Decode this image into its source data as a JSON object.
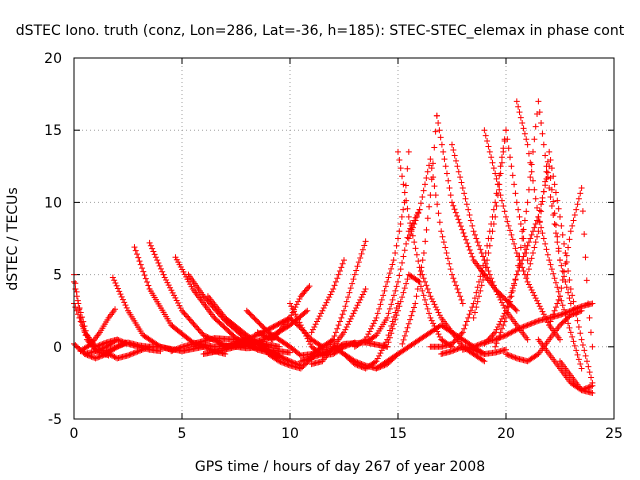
{
  "chart_data": {
    "type": "scatter",
    "title": "dSTEC Iono. truth (conz, Lon=286, Lat=-36, h=185): STEC-STEC_elemax in phase cont",
    "xlabel": "GPS time / hours of day 267 of year 2008",
    "ylabel": "dSTEC  / TECUs",
    "xlim": [
      0,
      25
    ],
    "ylim": [
      -5,
      20
    ],
    "xticks": [
      "0",
      "5",
      "10",
      "15",
      "20",
      "25"
    ],
    "yticks": [
      "-5",
      "0",
      "5",
      "10",
      "15",
      "20"
    ],
    "grid": true,
    "marker": "+",
    "color": "#ff0000",
    "series": [
      {
        "x": [
          0,
          0.3,
          0.6,
          1.0,
          1.5,
          2.0,
          2.4
        ],
        "y": [
          5.0,
          2.0,
          0.5,
          -0.2,
          -0.3,
          0.0,
          0.3
        ]
      },
      {
        "x": [
          0,
          0.2,
          0.6,
          1.0,
          1.6
        ],
        "y": [
          4.5,
          3.0,
          0.8,
          -0.3,
          -0.6
        ]
      },
      {
        "x": [
          0,
          0.5,
          1.0,
          1.5,
          2.0,
          2.5,
          3.0,
          3.5,
          4.0,
          4.5
        ],
        "y": [
          0.2,
          -0.5,
          -0.8,
          -0.5,
          0.0,
          0.3,
          0.1,
          0.0,
          0.0,
          -0.2
        ]
      },
      {
        "x": [
          0,
          0.5,
          1.0,
          1.5,
          2.0
        ],
        "y": [
          3.0,
          1.0,
          0.0,
          0.3,
          0.5
        ]
      },
      {
        "x": [
          0.3,
          0.8,
          1.2,
          1.6,
          1.9
        ],
        "y": [
          -0.3,
          0.2,
          1.0,
          2.0,
          2.6
        ]
      },
      {
        "x": [
          0.5,
          1.0,
          1.5,
          2.0,
          2.5,
          3.0,
          3.5,
          4.0
        ],
        "y": [
          -0.5,
          -0.3,
          0.0,
          0.5,
          0.2,
          0.0,
          -0.2,
          -0.3
        ]
      },
      {
        "x": [
          1.5,
          2.0,
          2.5,
          3.0,
          3.5
        ],
        "y": [
          -0.4,
          -0.8,
          -0.6,
          -0.3,
          0.0
        ]
      },
      {
        "x": [
          1.8,
          2.5,
          3.2,
          4.0,
          5.0,
          6.0
        ],
        "y": [
          4.8,
          2.5,
          0.8,
          0.0,
          -0.3,
          0.0
        ]
      },
      {
        "x": [
          2.8,
          3.5,
          4.5,
          5.5,
          6.5,
          7.5,
          8.5
        ],
        "y": [
          6.9,
          4.0,
          1.5,
          0.3,
          0.0,
          0.1,
          0.3
        ]
      },
      {
        "x": [
          3.5,
          4.2,
          5.0,
          6.0,
          7.0,
          8.0,
          9.0
        ],
        "y": [
          7.2,
          4.8,
          2.5,
          0.8,
          0.1,
          -0.1,
          0.0
        ]
      },
      {
        "x": [
          4.5,
          5.0,
          5.5,
          6.0,
          6.5,
          7.0
        ],
        "y": [
          -0.3,
          0.0,
          0.2,
          0.0,
          -0.3,
          -0.5
        ]
      },
      {
        "x": [
          4.7,
          5.5,
          6.5,
          7.5,
          8.5,
          9.5
        ],
        "y": [
          6.2,
          4.0,
          2.0,
          0.6,
          -0.2,
          -0.6
        ]
      },
      {
        "x": [
          5.3,
          6.0,
          7.0,
          8.0,
          9.0,
          10.0
        ],
        "y": [
          5.0,
          3.5,
          1.8,
          0.5,
          -0.2,
          -0.4
        ]
      },
      {
        "x": [
          5.5,
          6.5,
          7.5,
          8.5,
          9.5
        ],
        "y": [
          0.2,
          0.6,
          0.5,
          0.3,
          0.0
        ]
      },
      {
        "x": [
          6.2,
          7.0,
          8.0,
          9.0,
          10.0,
          10.5
        ],
        "y": [
          3.5,
          2.0,
          0.8,
          -0.3,
          -1.0,
          -1.3
        ]
      },
      {
        "x": [
          6.0,
          7.0,
          8.0,
          9.0,
          10.0,
          10.8
        ],
        "y": [
          -0.5,
          -0.2,
          0.2,
          0.6,
          1.5,
          2.5
        ]
      },
      {
        "x": [
          7.0,
          8.0,
          9.0,
          10.0,
          10.5,
          11.0,
          11.5
        ],
        "y": [
          0.0,
          0.5,
          1.2,
          2.0,
          1.3,
          0.5,
          0.0
        ]
      },
      {
        "x": [
          8.0,
          9.0,
          10.0,
          10.5,
          11.0,
          11.5,
          12.0
        ],
        "y": [
          2.5,
          1.0,
          0.0,
          -0.6,
          -0.5,
          0.0,
          0.5
        ]
      },
      {
        "x": [
          8.5,
          9.2,
          10.0,
          10.5,
          10.9
        ],
        "y": [
          1.0,
          0.5,
          2.0,
          3.5,
          4.2
        ]
      },
      {
        "x": [
          9.0,
          9.5,
          10.0,
          10.5,
          11.0,
          11.5
        ],
        "y": [
          -0.5,
          -1.0,
          -1.3,
          -1.5,
          -0.8,
          0.0
        ]
      },
      {
        "x": [
          10.0,
          10.5,
          11.0,
          11.5,
          12.0,
          12.5,
          13.0
        ],
        "y": [
          3.0,
          1.5,
          0.0,
          -0.6,
          -0.5,
          0.0,
          0.3
        ]
      },
      {
        "x": [
          11.0,
          11.5,
          12.0,
          12.5,
          13.0,
          13.5
        ],
        "y": [
          -1.2,
          -1.0,
          0.0,
          1.0,
          2.5,
          4.0
        ]
      },
      {
        "x": [
          10.5,
          11.5,
          12.5,
          13.5,
          14.5
        ],
        "y": [
          -1.0,
          -0.5,
          0.2,
          0.3,
          0.0
        ]
      },
      {
        "x": [
          11.5,
          12.0,
          12.5,
          13.0,
          13.5
        ],
        "y": [
          -0.4,
          0.5,
          2.5,
          5.0,
          7.3
        ]
      },
      {
        "x": [
          11.0,
          11.5,
          12.0,
          12.5
        ],
        "y": [
          1.0,
          2.5,
          4.0,
          6.0
        ]
      },
      {
        "x": [
          12.5,
          13.0,
          13.5,
          14.0,
          14.5,
          15.0
        ],
        "y": [
          -0.5,
          -1.2,
          -1.5,
          -1.0,
          0.5,
          3.0
        ]
      },
      {
        "x": [
          13.0,
          13.5,
          14.0,
          14.5,
          14.8,
          15.0,
          15.3,
          15.5
        ],
        "y": [
          0.0,
          0.5,
          2.0,
          4.5,
          6.0,
          7.5,
          10.0,
          13.5
        ]
      },
      {
        "x": [
          13.5,
          14.0,
          14.5,
          15.0,
          15.5,
          16.0
        ],
        "y": [
          0.3,
          0.8,
          2.0,
          4.5,
          8.0,
          9.5
        ]
      },
      {
        "x": [
          15.0,
          15.5,
          16.0,
          16.5,
          17.0,
          17.5,
          18.0,
          18.5,
          19.0
        ],
        "y": [
          13.5,
          9.0,
          5.5,
          3.5,
          2.0,
          1.0,
          0.0,
          -0.5,
          -1.0
        ]
      },
      {
        "x": [
          15.2,
          15.8,
          16.2,
          16.5,
          16.8
        ],
        "y": [
          0.2,
          3.0,
          6.5,
          10.5,
          16.0
        ]
      },
      {
        "x": [
          15.5,
          16.0,
          16.5,
          17.0,
          17.5,
          18.0
        ],
        "y": [
          7.5,
          9.5,
          13.0,
          8.0,
          5.0,
          3.0
        ]
      },
      {
        "x": [
          14.5,
          15.0,
          15.5,
          16.0,
          16.5,
          17.0,
          17.5
        ],
        "y": [
          0.0,
          2.5,
          5.0,
          4.5,
          2.0,
          0.5,
          0.0
        ]
      },
      {
        "x": [
          16.8,
          17.5,
          18.5,
          19.5,
          20.5
        ],
        "y": [
          16.0,
          10.0,
          6.0,
          4.0,
          2.5
        ]
      },
      {
        "x": [
          16.5,
          17.0,
          17.5,
          18.0,
          18.5,
          19.0,
          19.5,
          20.0
        ],
        "y": [
          0.0,
          0.0,
          0.2,
          1.0,
          3.0,
          6.0,
          10.0,
          15.0
        ]
      },
      {
        "x": [
          17.5,
          18.0,
          18.5,
          19.0,
          19.5,
          20.0,
          20.5,
          21.0
        ],
        "y": [
          14.0,
          11.0,
          8.0,
          6.0,
          4.0,
          2.5,
          1.5,
          0.5
        ]
      },
      {
        "x": [
          18.5,
          19.0,
          19.5,
          20.0,
          20.5,
          21.0
        ],
        "y": [
          2.0,
          5.0,
          9.0,
          15.0,
          10.0,
          6.0
        ]
      },
      {
        "x": [
          19.0,
          19.5,
          20.0,
          20.5,
          21.0,
          21.5,
          22.0,
          22.5
        ],
        "y": [
          15.0,
          12.0,
          9.0,
          6.5,
          4.5,
          3.0,
          1.5,
          0.5
        ]
      },
      {
        "x": [
          19.5,
          20.0,
          20.5,
          21.0,
          21.5,
          22.0,
          22.5
        ],
        "y": [
          0.0,
          2.0,
          5.0,
          10.0,
          17.0,
          11.0,
          6.0
        ]
      },
      {
        "x": [
          20.5,
          21.0,
          21.5,
          22.0,
          22.5,
          23.0,
          23.5
        ],
        "y": [
          17.0,
          14.0,
          9.0,
          6.0,
          3.5,
          1.0,
          -1.5
        ]
      },
      {
        "x": [
          21.0,
          21.5,
          22.0,
          22.5,
          23.0,
          23.5,
          24.0
        ],
        "y": [
          5.0,
          8.0,
          13.5,
          9.0,
          4.0,
          0.5,
          -2.5
        ]
      },
      {
        "x": [
          19.0,
          19.5,
          20.0,
          20.5,
          21.0,
          21.5,
          22.0,
          22.5,
          23.0
        ],
        "y": [
          0.2,
          1.0,
          2.5,
          5.0,
          7.0,
          9.0,
          12.5,
          6.0,
          3.0
        ]
      },
      {
        "x": [
          22.0,
          22.5,
          23.0,
          23.5,
          23.8,
          24.0
        ],
        "y": [
          1.5,
          3.5,
          8.0,
          11.0,
          3.0,
          0.0
        ]
      },
      {
        "x": [
          22.5,
          23.0,
          23.5,
          24.0
        ],
        "y": [
          -1.0,
          -2.0,
          -3.0,
          -3.2
        ]
      },
      {
        "x": [
          21.5,
          22.0,
          22.5,
          23.0,
          23.5,
          24.0
        ],
        "y": [
          0.5,
          -0.5,
          -1.5,
          -2.5,
          -3.0,
          -2.7
        ]
      },
      {
        "x": [
          20.0,
          20.5,
          21.0,
          21.5,
          22.0,
          22.5,
          23.0,
          23.5
        ],
        "y": [
          -0.5,
          -0.8,
          -1.0,
          -0.5,
          0.5,
          1.5,
          2.2,
          2.5
        ]
      },
      {
        "x": [
          17.0,
          17.5,
          18.0,
          18.5,
          19.0,
          19.5,
          20.0
        ],
        "y": [
          -0.5,
          -0.3,
          0.0,
          -0.2,
          -0.5,
          -0.4,
          -0.2
        ]
      },
      {
        "x": [
          18.0,
          18.5,
          19.0,
          19.5,
          20.0,
          20.5,
          21.0,
          21.5,
          22.0,
          22.5,
          23.0,
          23.5,
          24.0
        ],
        "y": [
          -0.2,
          0.0,
          0.3,
          0.5,
          0.8,
          1.2,
          1.5,
          1.8,
          2.0,
          2.2,
          2.5,
          2.8,
          3.0
        ]
      },
      {
        "x": [
          14.0,
          14.5,
          15.0,
          15.5,
          16.0,
          16.5,
          17.0,
          17.5,
          18.0,
          18.5,
          19.0
        ],
        "y": [
          -1.5,
          -1.0,
          -0.5,
          0.0,
          0.5,
          1.0,
          1.5,
          1.0,
          0.5,
          0.0,
          -0.5
        ]
      },
      {
        "x": [
          12.0,
          12.5,
          13.0,
          13.5,
          14.0,
          14.5,
          15.0
        ],
        "y": [
          0.0,
          -0.5,
          -1.0,
          -1.3,
          -1.5,
          -1.2,
          -0.5
        ]
      }
    ]
  }
}
